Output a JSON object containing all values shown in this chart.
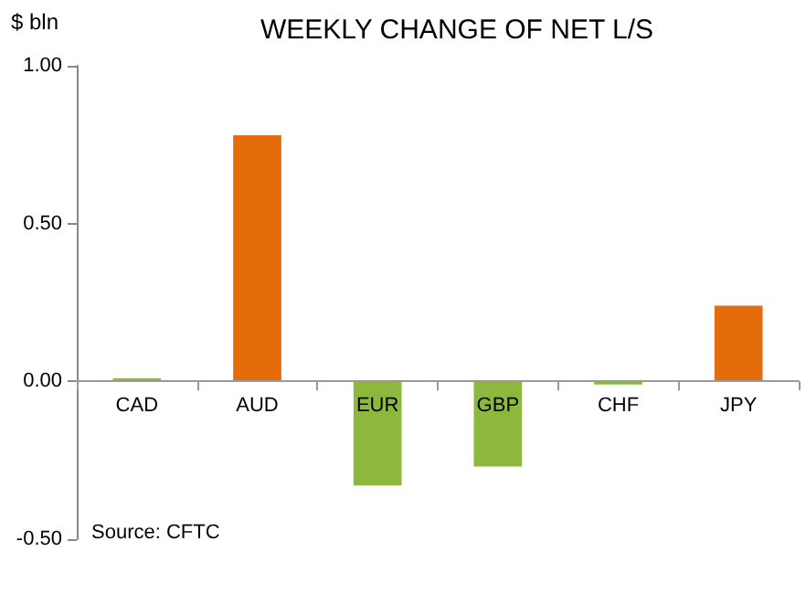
{
  "chart_data": {
    "type": "bar",
    "title": "WEEKLY CHANGE OF NET L/S",
    "ylabel": "$ bln",
    "categories": [
      "CAD",
      "AUD",
      "EUR",
      "GBP",
      "CHF",
      "JPY"
    ],
    "values": [
      0.01,
      0.78,
      -0.33,
      -0.27,
      -0.01,
      0.24
    ],
    "colors": [
      "#8db83e",
      "#e46c0a",
      "#8db83e",
      "#8db83e",
      "#8db83e",
      "#e46c0a"
    ],
    "ylim": [
      -0.5,
      1
    ],
    "yticks": [
      {
        "value": -0.5,
        "label": "-0.50"
      },
      {
        "value": 0,
        "label": "0.00"
      },
      {
        "value": 0.5,
        "label": "0.50"
      },
      {
        "value": 1,
        "label": "1.00"
      }
    ],
    "annotations": [
      "Source: CFTC"
    ],
    "line_style": "solid"
  }
}
